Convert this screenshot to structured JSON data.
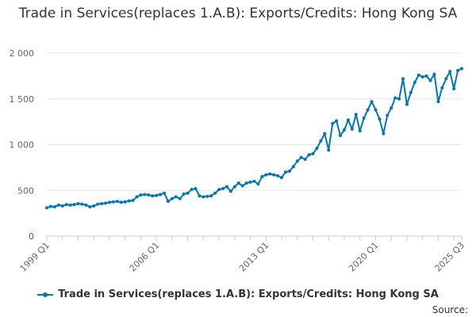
{
  "chart_data": {
    "type": "line",
    "title": "Trade in Services(replaces 1.A.B): Exports/Credits: Hong Kong SA",
    "xlabel": "",
    "ylabel": "",
    "ylim": [
      0,
      2000
    ],
    "yticks": [
      0,
      500,
      1000,
      1500,
      2000
    ],
    "ytick_labels": [
      "0",
      "500",
      "1 000",
      "1 500",
      "2 000"
    ],
    "xtick_labels": [
      "1999 Q1",
      "2006 Q1",
      "2013 Q1",
      "2020 Q1",
      "2025 Q3"
    ],
    "xtick_index": [
      0,
      28,
      56,
      84,
      106
    ],
    "grid": true,
    "legend_position": "bottom",
    "color": "#0077b4",
    "series": [
      {
        "name": "Trade in Services(replaces 1.A.B): Exports/Credits: Hong Kong SA",
        "values": [
          310,
          325,
          320,
          340,
          330,
          345,
          340,
          345,
          355,
          350,
          340,
          320,
          330,
          350,
          355,
          360,
          370,
          375,
          380,
          370,
          375,
          385,
          390,
          430,
          450,
          455,
          450,
          440,
          445,
          455,
          470,
          380,
          410,
          430,
          410,
          460,
          470,
          510,
          520,
          440,
          430,
          435,
          440,
          470,
          510,
          520,
          540,
          490,
          540,
          580,
          550,
          580,
          590,
          600,
          570,
          650,
          670,
          680,
          670,
          660,
          640,
          700,
          710,
          760,
          820,
          860,
          840,
          890,
          900,
          960,
          1040,
          1120,
          940,
          1230,
          1260,
          1100,
          1160,
          1270,
          1170,
          1330,
          1150,
          1290,
          1380,
          1470,
          1380,
          1280,
          1120,
          1320,
          1400,
          1510,
          1500,
          1720,
          1440,
          1570,
          1680,
          1760,
          1740,
          1750,
          1700,
          1770,
          1470,
          1620,
          1720,
          1800,
          1610,
          1810,
          1830
        ]
      }
    ]
  },
  "source_label": "Source:"
}
